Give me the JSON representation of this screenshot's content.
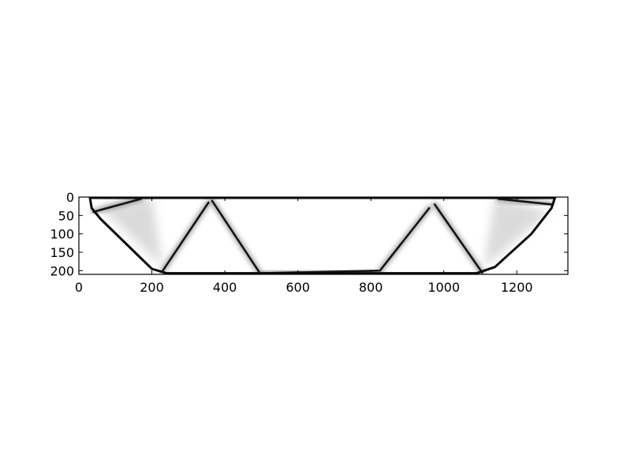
{
  "chart_data": {
    "type": "heatmap",
    "title": "",
    "xlabel": "",
    "ylabel": "",
    "xlim": [
      0,
      1340
    ],
    "ylim": [
      210,
      0
    ],
    "x_ticks": [
      0,
      200,
      400,
      600,
      800,
      1000,
      1200
    ],
    "y_ticks": [
      0,
      50,
      100,
      150,
      200
    ],
    "colormap": "gray_r",
    "grid": false,
    "structure": {
      "outline": [
        {
          "x": 30,
          "y": 0
        },
        {
          "x": 35,
          "y": 30
        },
        {
          "x": 60,
          "y": 60
        },
        {
          "x": 200,
          "y": 195
        },
        {
          "x": 240,
          "y": 207
        },
        {
          "x": 1090,
          "y": 207
        },
        {
          "x": 1140,
          "y": 190
        },
        {
          "x": 1240,
          "y": 100
        },
        {
          "x": 1295,
          "y": 30
        },
        {
          "x": 1305,
          "y": 0
        }
      ],
      "top_chord": [
        {
          "x": 30,
          "y": 3
        },
        {
          "x": 1305,
          "y": 3
        }
      ],
      "members": [
        {
          "name": "left-diagonal-1",
          "points": [
            {
              "x": 230,
              "y": 200
            },
            {
              "x": 355,
              "y": 15
            }
          ]
        },
        {
          "name": "left-diagonal-2",
          "points": [
            {
              "x": 365,
              "y": 10
            },
            {
              "x": 495,
              "y": 205
            }
          ]
        },
        {
          "name": "bottom-chord-center",
          "points": [
            {
              "x": 500,
              "y": 207
            },
            {
              "x": 820,
              "y": 200
            }
          ]
        },
        {
          "name": "right-diagonal-1",
          "points": [
            {
              "x": 825,
              "y": 200
            },
            {
              "x": 960,
              "y": 30
            }
          ]
        },
        {
          "name": "right-diagonal-2",
          "points": [
            {
              "x": 975,
              "y": 20
            },
            {
              "x": 1105,
              "y": 205
            }
          ]
        },
        {
          "name": "left-upper-brace",
          "points": [
            {
              "x": 40,
              "y": 40
            },
            {
              "x": 170,
              "y": 5
            }
          ]
        },
        {
          "name": "right-upper-brace",
          "points": [
            {
              "x": 1150,
              "y": 5
            },
            {
              "x": 1295,
              "y": 20
            }
          ]
        }
      ],
      "gray_fill_regions": [
        {
          "name": "left-wedge",
          "points": [
            {
              "x": 60,
              "y": 30
            },
            {
              "x": 200,
              "y": 0
            },
            {
              "x": 230,
              "y": 190
            }
          ]
        },
        {
          "name": "right-wedge",
          "points": [
            {
              "x": 1110,
              "y": 190
            },
            {
              "x": 1140,
              "y": 0
            },
            {
              "x": 1290,
              "y": 40
            }
          ]
        }
      ]
    }
  }
}
